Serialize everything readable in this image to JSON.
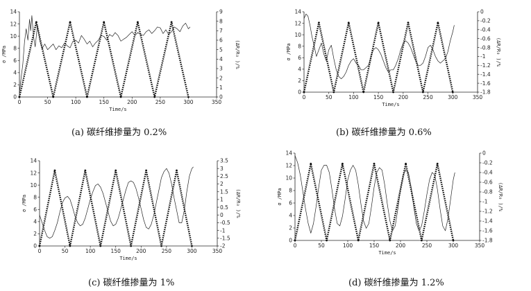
{
  "figure": {
    "panels": [
      {
        "caption": "(a)  碳纤维掺量为 0.2%"
      },
      {
        "caption": "(b) 碳纤维掺量为 0.6%"
      },
      {
        "caption": "(c) 碳纤维掺量为 1%"
      },
      {
        "caption": "(d) 碳纤维掺量为 1.2%"
      }
    ]
  },
  "chart_data": [
    {
      "type": "line",
      "title": "(a)  碳纤维掺量为 0.2%",
      "xlabel": "Time/s",
      "ylabel": "σ /MPa",
      "y2label": "(ΔR/R₀ )/%",
      "xlim": [
        0,
        350
      ],
      "xticks": [
        0,
        50,
        100,
        150,
        200,
        250,
        300,
        350
      ],
      "ylim": [
        0,
        14
      ],
      "yticks": [
        0,
        2,
        4,
        6,
        8,
        10,
        12,
        14
      ],
      "y2lim": [
        0,
        9
      ],
      "y2ticks": [
        0,
        1,
        2,
        3,
        4,
        5,
        6,
        7,
        8,
        9
      ],
      "series": [
        {
          "axis": "left",
          "style": "dotted-thick",
          "x": [
            0,
            30,
            60,
            90,
            120,
            150,
            180,
            210,
            240,
            270,
            300
          ],
          "y": [
            0,
            12.3,
            0,
            12.3,
            0,
            12.3,
            0,
            12.3,
            0,
            12.3,
            0
          ]
        },
        {
          "axis": "right",
          "style": "thin",
          "x": [
            0,
            3,
            6,
            9,
            12,
            15,
            18,
            20,
            22,
            25,
            28,
            32,
            36,
            40,
            45,
            50,
            55,
            60,
            65,
            70,
            75,
            80,
            85,
            90,
            95,
            100,
            105,
            110,
            115,
            120,
            125,
            130,
            135,
            140,
            145,
            150,
            155,
            160,
            165,
            170,
            175,
            180,
            185,
            190,
            195,
            200,
            205,
            210,
            215,
            220,
            225,
            230,
            235,
            240,
            245,
            250,
            255,
            260,
            265,
            270,
            275,
            280,
            285,
            290,
            295,
            300,
            303
          ],
          "y": [
            0.4,
            2.0,
            3.5,
            5.8,
            7.2,
            6.0,
            8.2,
            7.0,
            8.6,
            6.4,
            5.3,
            7.6,
            6.0,
            5.1,
            5.6,
            5.0,
            5.3,
            5.6,
            5.0,
            5.4,
            5.2,
            5.7,
            5.4,
            5.2,
            5.9,
            6.0,
            5.7,
            6.5,
            6.1,
            5.6,
            5.9,
            5.3,
            5.7,
            6.0,
            6.5,
            6.4,
            6.0,
            6.6,
            6.4,
            6.8,
            6.5,
            5.9,
            6.1,
            6.3,
            6.6,
            6.9,
            6.5,
            6.8,
            6.6,
            6.5,
            6.9,
            7.1,
            6.7,
            7.0,
            7.4,
            7.3,
            6.7,
            7.1,
            6.6,
            6.9,
            7.4,
            7.2,
            6.9,
            7.5,
            7.8,
            7.2,
            7.4
          ]
        }
      ]
    },
    {
      "type": "line",
      "title": "(b) 碳纤维掺量为 0.6%",
      "xlabel": "Time/s",
      "ylabel": "σ /MPa",
      "y2label": "(ΔR/R₀ )/%",
      "xlim": [
        0,
        350
      ],
      "xticks": [
        0,
        50,
        100,
        150,
        200,
        250,
        300,
        350
      ],
      "ylim": [
        0,
        14
      ],
      "yticks": [
        0,
        2,
        4,
        6,
        8,
        10,
        12,
        14
      ],
      "y2lim": [
        -1.8,
        0
      ],
      "y2ticks": [
        0,
        -0.2,
        -0.4,
        -0.6,
        -0.8,
        -1,
        -1.2,
        -1.4,
        -1.6,
        -1.8
      ],
      "series": [
        {
          "axis": "left",
          "style": "dotted-thick",
          "x": [
            0,
            30,
            60,
            90,
            120,
            150,
            180,
            210,
            240,
            270,
            300
          ],
          "y": [
            0,
            12.1,
            0,
            12.1,
            0,
            12.1,
            0,
            12.1,
            0,
            12.1,
            0
          ]
        },
        {
          "axis": "right",
          "style": "thin",
          "x": [
            0,
            4,
            8,
            12,
            16,
            20,
            25,
            30,
            35,
            40,
            45,
            50,
            55,
            60,
            65,
            70,
            75,
            80,
            85,
            90,
            95,
            100,
            105,
            110,
            115,
            120,
            125,
            130,
            135,
            140,
            145,
            150,
            155,
            160,
            165,
            170,
            175,
            180,
            185,
            190,
            195,
            200,
            205,
            210,
            215,
            220,
            225,
            230,
            235,
            240,
            245,
            250,
            255,
            260,
            265,
            270,
            275,
            280,
            285,
            290,
            295,
            300,
            303
          ],
          "y": [
            -0.15,
            -0.05,
            -0.1,
            -0.3,
            -0.55,
            -0.75,
            -1.0,
            -0.85,
            -0.7,
            -0.95,
            -1.1,
            -0.85,
            -0.75,
            -1.05,
            -1.3,
            -1.45,
            -1.5,
            -1.45,
            -1.35,
            -1.2,
            -1.1,
            -1.05,
            -1.15,
            -1.2,
            -1.3,
            -1.3,
            -1.25,
            -1.2,
            -1.0,
            -0.85,
            -0.8,
            -0.85,
            -0.95,
            -1.1,
            -1.25,
            -1.35,
            -1.3,
            -1.3,
            -1.2,
            -1.05,
            -0.85,
            -0.7,
            -0.65,
            -0.7,
            -0.8,
            -0.95,
            -1.1,
            -1.2,
            -1.2,
            -1.15,
            -1.0,
            -0.8,
            -0.75,
            -0.85,
            -1.0,
            -1.1,
            -1.15,
            -1.1,
            -1.05,
            -0.9,
            -0.65,
            -0.45,
            -0.3
          ]
        }
      ]
    },
    {
      "type": "line",
      "title": "(c) 碳纤维掺量为 1%",
      "xlabel": "Time/s",
      "ylabel": "σ /MPa",
      "y2label": "(ΔR/R₀ )/%",
      "xlim": [
        0,
        350
      ],
      "xticks": [
        0,
        50,
        100,
        150,
        200,
        250,
        300,
        350
      ],
      "ylim": [
        0,
        14
      ],
      "yticks": [
        0,
        2,
        4,
        6,
        8,
        10,
        12,
        14
      ],
      "y2lim": [
        -2,
        3.5
      ],
      "y2ticks": [
        3.5,
        3,
        2.5,
        2,
        1.5,
        1,
        0.5,
        0,
        -0.5,
        -1,
        -1.5,
        -2
      ],
      "series": [
        {
          "axis": "left",
          "style": "dotted-thick",
          "x": [
            0,
            30,
            60,
            90,
            120,
            150,
            180,
            210,
            240,
            270,
            300
          ],
          "y": [
            0,
            12.4,
            0,
            12.4,
            0,
            12.4,
            0,
            12.4,
            0,
            12.4,
            0
          ]
        },
        {
          "axis": "right",
          "style": "thin",
          "x": [
            0,
            5,
            10,
            15,
            20,
            25,
            30,
            35,
            40,
            45,
            50,
            55,
            60,
            65,
            70,
            75,
            80,
            85,
            90,
            95,
            100,
            105,
            110,
            115,
            120,
            125,
            130,
            135,
            140,
            145,
            150,
            155,
            160,
            165,
            170,
            175,
            180,
            185,
            190,
            195,
            200,
            205,
            210,
            215,
            220,
            225,
            230,
            235,
            240,
            245,
            250,
            255,
            260,
            265,
            270,
            275,
            280,
            285,
            290,
            295,
            300,
            303
          ],
          "y": [
            0.0,
            -0.5,
            -1.0,
            -1.4,
            -1.5,
            -1.4,
            -1.0,
            -0.5,
            0.2,
            0.8,
            1.1,
            1.2,
            1.0,
            0.5,
            -0.1,
            -0.5,
            -0.7,
            -0.6,
            -0.2,
            0.4,
            1.0,
            1.5,
            1.9,
            2.0,
            1.8,
            1.4,
            0.8,
            0.2,
            -0.4,
            -0.7,
            -0.6,
            -0.2,
            0.4,
            1.0,
            1.6,
            2.1,
            2.2,
            2.1,
            1.7,
            1.1,
            0.4,
            -0.3,
            -0.8,
            -0.9,
            -0.6,
            0.0,
            0.8,
            1.6,
            2.4,
            2.8,
            3.0,
            2.7,
            2.0,
            1.1,
            0.3,
            -0.5,
            -0.5,
            0.3,
            1.5,
            2.5,
            3.0,
            3.1
          ]
        }
      ]
    },
    {
      "type": "line",
      "title": "(d) 碳纤维掺量为 1.2%",
      "xlabel": "Time/s",
      "ylabel": "σ /MPa",
      "y2label": "(ΔR/R₀ )/%",
      "xlim": [
        0,
        350
      ],
      "xticks": [
        0,
        50,
        100,
        150,
        200,
        250,
        300,
        350
      ],
      "ylim": [
        0,
        14
      ],
      "yticks": [
        0,
        2,
        4,
        6,
        8,
        10,
        12,
        14
      ],
      "y2lim": [
        -1.8,
        0
      ],
      "y2ticks": [
        0,
        -0.2,
        -0.4,
        -0.6,
        -0.8,
        -1,
        -1.2,
        -1.4,
        -1.6,
        -1.8
      ],
      "series": [
        {
          "axis": "left",
          "style": "dotted-thick",
          "x": [
            0,
            30,
            60,
            90,
            120,
            150,
            180,
            210,
            240,
            270,
            300
          ],
          "y": [
            0,
            12.3,
            0,
            12.3,
            0,
            12.3,
            0,
            12.3,
            0,
            12.3,
            0
          ]
        },
        {
          "axis": "right",
          "style": "thin",
          "x": [
            0,
            5,
            10,
            15,
            20,
            25,
            30,
            35,
            40,
            45,
            50,
            55,
            60,
            65,
            70,
            75,
            80,
            85,
            90,
            95,
            100,
            105,
            110,
            115,
            120,
            125,
            130,
            135,
            140,
            145,
            150,
            155,
            160,
            165,
            170,
            175,
            180,
            185,
            190,
            195,
            200,
            205,
            210,
            215,
            220,
            225,
            230,
            235,
            240,
            245,
            250,
            255,
            260,
            265,
            270,
            275,
            280,
            285,
            290,
            295,
            300,
            303
          ],
          "y": [
            -0.05,
            -0.2,
            -0.45,
            -0.8,
            -1.15,
            -1.45,
            -1.65,
            -1.45,
            -1.1,
            -0.7,
            -0.35,
            -0.25,
            -0.25,
            -0.4,
            -0.75,
            -1.15,
            -1.45,
            -1.5,
            -1.3,
            -0.95,
            -0.55,
            -0.35,
            -0.25,
            -0.35,
            -0.65,
            -1.05,
            -1.4,
            -1.55,
            -1.45,
            -1.1,
            -0.7,
            -0.4,
            -0.3,
            -0.35,
            -0.65,
            -1.05,
            -1.4,
            -1.6,
            -1.5,
            -1.15,
            -0.75,
            -0.45,
            -0.35,
            -0.4,
            -0.7,
            -1.1,
            -1.45,
            -1.6,
            -1.5,
            -1.2,
            -0.85,
            -0.55,
            -0.4,
            -0.45,
            -0.75,
            -1.15,
            -1.5,
            -1.6,
            -1.35,
            -0.95,
            -0.55,
            -0.4
          ]
        }
      ]
    }
  ]
}
